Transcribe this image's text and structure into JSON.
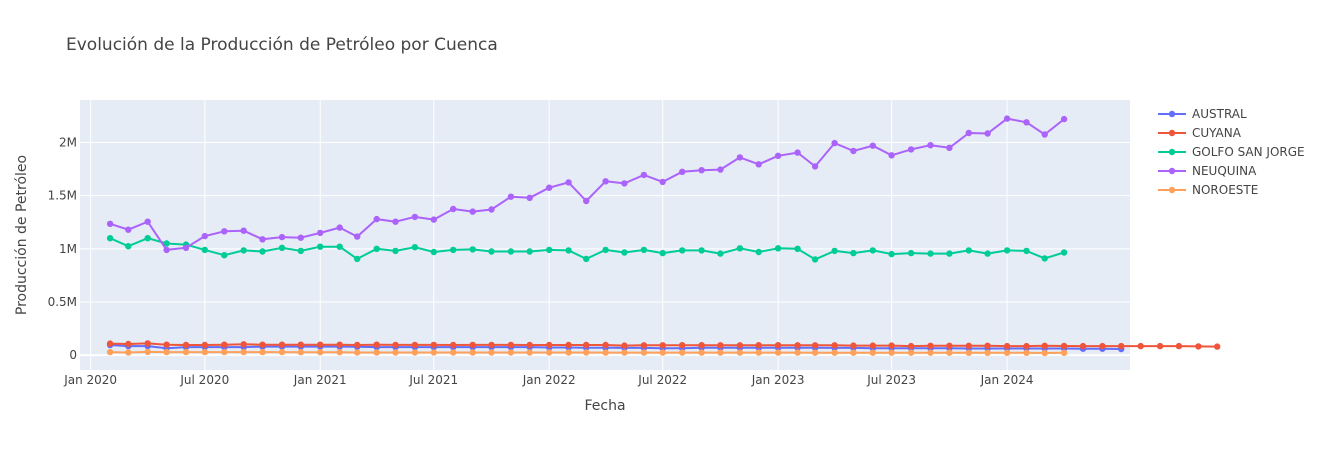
{
  "chart_data": {
    "type": "line",
    "title": "Evolución de la Producción de Petróleo por Cuenca",
    "xlabel": "Fecha",
    "ylabel": "Producción de Petróleo",
    "x_start": "2020-02",
    "x_ticks": [
      {
        "label": "Jan 2020",
        "date": "2020-01"
      },
      {
        "label": "Jul 2020",
        "date": "2020-07"
      },
      {
        "label": "Jan 2021",
        "date": "2021-01"
      },
      {
        "label": "Jul 2021",
        "date": "2021-07"
      },
      {
        "label": "Jan 2022",
        "date": "2022-01"
      },
      {
        "label": "Jul 2022",
        "date": "2022-07"
      },
      {
        "label": "Jan 2023",
        "date": "2023-01"
      },
      {
        "label": "Jul 2023",
        "date": "2023-07"
      },
      {
        "label": "Jan 2024",
        "date": "2024-01"
      }
    ],
    "x_range": [
      "2019-12-15",
      "2024-07-15"
    ],
    "y_ticks": [
      {
        "label": "0",
        "value": 0
      },
      {
        "label": "0.5M",
        "value": 500000
      },
      {
        "label": "1M",
        "value": 1000000
      },
      {
        "label": "1.5M",
        "value": 1500000
      },
      {
        "label": "2M",
        "value": 2000000
      }
    ],
    "ylim": [
      -140000,
      2400000
    ],
    "grid": true,
    "legend_position": "right",
    "series": [
      {
        "name": "AUSTRAL",
        "color": "#636efa",
        "values": [
          95000,
          85000,
          85000,
          65000,
          75000,
          75000,
          75000,
          75000,
          80000,
          80000,
          80000,
          80000,
          80000,
          78000,
          75000,
          75000,
          75000,
          75000,
          75000,
          75000,
          75000,
          75000,
          75000,
          72000,
          72000,
          70000,
          70000,
          68000,
          68000,
          65000,
          65000,
          70000,
          70000,
          70000,
          70000,
          70000,
          70000,
          70000,
          68000,
          68000,
          65000,
          65000,
          65000,
          65000,
          65000,
          62000,
          62000,
          62000,
          62000,
          62000,
          62000,
          60000,
          60000,
          58000
        ]
      },
      {
        "name": "CUYANA",
        "color": "#ef553b",
        "values": [
          108000,
          105000,
          110000,
          98000,
          95000,
          95000,
          98000,
          102000,
          98000,
          98000,
          98000,
          98000,
          98000,
          95000,
          98000,
          96000,
          96000,
          96000,
          95000,
          96000,
          96000,
          96000,
          95000,
          95000,
          95000,
          95000,
          95000,
          90000,
          92000,
          92000,
          93000,
          93000,
          92000,
          92000,
          93000,
          93000,
          92000,
          92000,
          92000,
          90000,
          90000,
          90000,
          85000,
          88000,
          88000,
          88000,
          88000,
          85000,
          85000,
          88000,
          86000,
          85000,
          85000,
          85000,
          85000,
          85000,
          85000,
          82000,
          80000
        ]
      },
      {
        "name": "GOLFO SAN JORGE",
        "color": "#00cc96",
        "values": [
          1100000,
          1025000,
          1100000,
          1050000,
          1040000,
          990000,
          940000,
          985000,
          975000,
          1010000,
          980000,
          1020000,
          1020000,
          905000,
          1000000,
          980000,
          1015000,
          970000,
          990000,
          995000,
          975000,
          975000,
          975000,
          990000,
          985000,
          905000,
          990000,
          965000,
          990000,
          960000,
          985000,
          985000,
          955000,
          1005000,
          970000,
          1005000,
          1000000,
          900000,
          980000,
          960000,
          985000,
          950000,
          960000,
          955000,
          955000,
          985000,
          955000,
          985000,
          980000,
          910000,
          965000
        ]
      },
      {
        "name": "NEUQUINA",
        "color": "#ab63fa",
        "values": [
          1235000,
          1180000,
          1255000,
          990000,
          1010000,
          1120000,
          1165000,
          1170000,
          1090000,
          1110000,
          1105000,
          1150000,
          1200000,
          1115000,
          1280000,
          1255000,
          1300000,
          1275000,
          1375000,
          1350000,
          1370000,
          1490000,
          1480000,
          1575000,
          1625000,
          1450000,
          1635000,
          1615000,
          1695000,
          1630000,
          1725000,
          1740000,
          1745000,
          1860000,
          1795000,
          1875000,
          1905000,
          1775000,
          1995000,
          1920000,
          1970000,
          1880000,
          1935000,
          1975000,
          1950000,
          2090000,
          2085000,
          2225000,
          2190000,
          2075000,
          2220000
        ]
      },
      {
        "name": "NOROESTE",
        "color": "#ffa15a",
        "values": [
          28000,
          25000,
          30000,
          28000,
          28000,
          28000,
          28000,
          28000,
          28000,
          28000,
          27000,
          27000,
          27000,
          25000,
          25000,
          25000,
          25000,
          25000,
          25000,
          25000,
          25000,
          25000,
          25000,
          25000,
          25000,
          25000,
          24000,
          24000,
          24000,
          24000,
          24000,
          24000,
          24000,
          24000,
          24000,
          24000,
          24000,
          23000,
          23000,
          23000,
          23000,
          23000,
          23000,
          23000,
          23000,
          22000,
          22000,
          22000,
          22000,
          20000,
          22000
        ]
      }
    ]
  }
}
